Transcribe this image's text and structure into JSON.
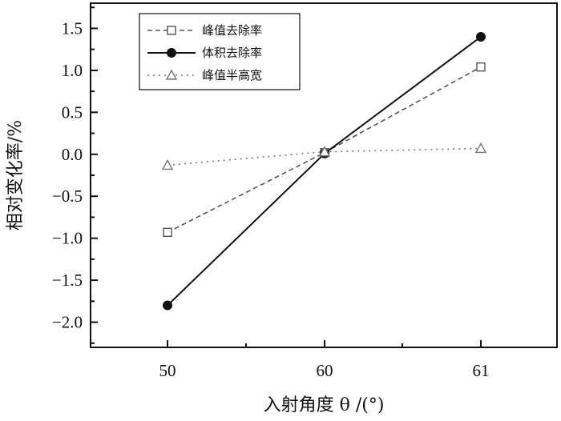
{
  "chart_data": {
    "type": "line",
    "categories": [
      "50",
      "60",
      "61"
    ],
    "xlabel": "入射角度 θ /(°)",
    "ylabel": "相对变化率/%",
    "ylim": [
      -2.3,
      1.8
    ],
    "yticks": [
      -2.0,
      -1.5,
      -1.0,
      -0.5,
      0.0,
      0.5,
      1.0,
      1.5
    ],
    "ytick_labels": [
      "−2.0",
      "−1.5",
      "−1.0",
      "−0.5",
      "0.0",
      "0.5",
      "1.0",
      "1.5"
    ],
    "grid": false,
    "legend_position": "top-left",
    "series": [
      {
        "name": "峰值去除率",
        "values": [
          -0.93,
          0.02,
          1.04
        ],
        "marker": "open-square",
        "line": "dashed",
        "color": "#555555"
      },
      {
        "name": "体积去除率",
        "values": [
          -1.8,
          0.01,
          1.4
        ],
        "marker": "filled-circle",
        "line": "solid",
        "color": "#111111"
      },
      {
        "name": "峰值半高宽",
        "values": [
          -0.13,
          0.03,
          0.07
        ],
        "marker": "open-triangle",
        "line": "dotted",
        "color": "#777777"
      }
    ]
  }
}
